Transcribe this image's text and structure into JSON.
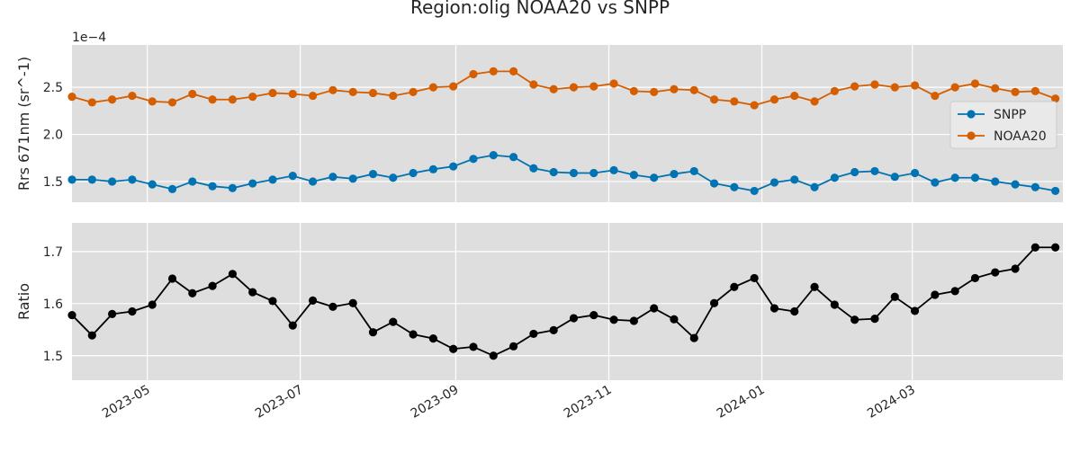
{
  "title": "Region:olig NOAA20 vs SNPP",
  "colors": {
    "snpp": "#0173b2",
    "noaa20": "#d55e00",
    "ratio": "#000000",
    "plot_bg": "#dedede",
    "grid": "#ffffff"
  },
  "chart_data": [
    {
      "type": "line",
      "title": "",
      "ylabel": "Rrs 671nm (sr^-1)",
      "y_offset_label": "1e−4",
      "xlim": [
        "2023-04-01",
        "2024-04-30"
      ],
      "ylim": [
        1.28,
        2.95
      ],
      "grid": true,
      "yticks": [
        1.5,
        2.0,
        2.5
      ],
      "ytick_labels": [
        "1.5",
        "2.0",
        "2.5"
      ],
      "legend": "center-right",
      "x": [
        "2023-04-01",
        "2023-04-09",
        "2023-04-17",
        "2023-04-25",
        "2023-05-03",
        "2023-05-11",
        "2023-05-19",
        "2023-05-27",
        "2023-06-04",
        "2023-06-12",
        "2023-06-20",
        "2023-06-28",
        "2023-07-06",
        "2023-07-14",
        "2023-07-22",
        "2023-07-30",
        "2023-08-07",
        "2023-08-15",
        "2023-08-23",
        "2023-08-31",
        "2023-09-08",
        "2023-09-16",
        "2023-09-24",
        "2023-10-02",
        "2023-10-10",
        "2023-10-18",
        "2023-10-26",
        "2023-11-03",
        "2023-11-11",
        "2023-11-19",
        "2023-11-27",
        "2023-12-05",
        "2023-12-13",
        "2023-12-21",
        "2023-12-29",
        "2024-01-06",
        "2024-01-14",
        "2024-01-22",
        "2024-01-30",
        "2024-02-07",
        "2024-02-15",
        "2024-02-23",
        "2024-03-02",
        "2024-03-10",
        "2024-03-18",
        "2024-03-26",
        "2024-04-03",
        "2024-04-11",
        "2024-04-19",
        "2024-04-27"
      ],
      "series": [
        {
          "name": "SNPP",
          "color": "#0173b2",
          "values": [
            1.52,
            1.52,
            1.5,
            1.52,
            1.47,
            1.42,
            1.5,
            1.45,
            1.43,
            1.48,
            1.52,
            1.56,
            1.5,
            1.55,
            1.53,
            1.58,
            1.54,
            1.59,
            1.63,
            1.66,
            1.74,
            1.78,
            1.76,
            1.64,
            1.6,
            1.59,
            1.59,
            1.62,
            1.57,
            1.54,
            1.58,
            1.61,
            1.48,
            1.44,
            1.4,
            1.49,
            1.52,
            1.44,
            1.54,
            1.6,
            1.61,
            1.55,
            1.59,
            1.49,
            1.54,
            1.54,
            1.5,
            1.47,
            1.44,
            1.4
          ]
        },
        {
          "name": "NOAA20",
          "color": "#d55e00",
          "values": [
            2.4,
            2.34,
            2.37,
            2.41,
            2.35,
            2.34,
            2.43,
            2.37,
            2.37,
            2.4,
            2.44,
            2.43,
            2.41,
            2.47,
            2.45,
            2.44,
            2.41,
            2.45,
            2.5,
            2.51,
            2.64,
            2.67,
            2.67,
            2.53,
            2.48,
            2.5,
            2.51,
            2.54,
            2.46,
            2.45,
            2.48,
            2.47,
            2.37,
            2.35,
            2.31,
            2.37,
            2.41,
            2.35,
            2.46,
            2.51,
            2.53,
            2.5,
            2.52,
            2.41,
            2.5,
            2.54,
            2.49,
            2.45,
            2.46,
            2.38
          ]
        }
      ]
    },
    {
      "type": "line",
      "title": "",
      "ylabel": "Ratio",
      "xlim": [
        "2023-04-01",
        "2024-04-30"
      ],
      "ylim": [
        1.453,
        1.755
      ],
      "grid": true,
      "yticks": [
        1.5,
        1.6,
        1.7
      ],
      "ytick_labels": [
        "1.5",
        "1.6",
        "1.7"
      ],
      "xticks": [
        "2023-05-01",
        "2023-07-01",
        "2023-09-01",
        "2023-11-01",
        "2024-01-01",
        "2024-03-01"
      ],
      "xtick_labels": [
        "2023-05",
        "2023-07",
        "2023-09",
        "2023-11",
        "2024-01",
        "2024-03"
      ],
      "x": [
        "2023-04-01",
        "2023-04-09",
        "2023-04-17",
        "2023-04-25",
        "2023-05-03",
        "2023-05-11",
        "2023-05-19",
        "2023-05-27",
        "2023-06-04",
        "2023-06-12",
        "2023-06-20",
        "2023-06-28",
        "2023-07-06",
        "2023-07-14",
        "2023-07-22",
        "2023-07-30",
        "2023-08-07",
        "2023-08-15",
        "2023-08-23",
        "2023-08-31",
        "2023-09-08",
        "2023-09-16",
        "2023-09-24",
        "2023-10-02",
        "2023-10-10",
        "2023-10-18",
        "2023-10-26",
        "2023-11-03",
        "2023-11-11",
        "2023-11-19",
        "2023-11-27",
        "2023-12-05",
        "2023-12-13",
        "2023-12-21",
        "2023-12-29",
        "2024-01-06",
        "2024-01-14",
        "2024-01-22",
        "2024-01-30",
        "2024-02-07",
        "2024-02-15",
        "2024-02-23",
        "2024-03-02",
        "2024-03-10",
        "2024-03-18",
        "2024-03-26",
        "2024-04-03",
        "2024-04-11",
        "2024-04-19",
        "2024-04-27"
      ],
      "series": [
        {
          "color": "#000000",
          "values": [
            1.578,
            1.539,
            1.58,
            1.585,
            1.598,
            1.648,
            1.62,
            1.634,
            1.657,
            1.622,
            1.605,
            1.558,
            1.606,
            1.594,
            1.601,
            1.545,
            1.565,
            1.541,
            1.533,
            1.513,
            1.517,
            1.5,
            1.518,
            1.542,
            1.549,
            1.572,
            1.578,
            1.569,
            1.567,
            1.591,
            1.57,
            1.534,
            1.601,
            1.632,
            1.649,
            1.591,
            1.585,
            1.632,
            1.598,
            1.569,
            1.571,
            1.613,
            1.586,
            1.617,
            1.624,
            1.649,
            1.66,
            1.667,
            1.708,
            1.708
          ]
        }
      ]
    }
  ]
}
